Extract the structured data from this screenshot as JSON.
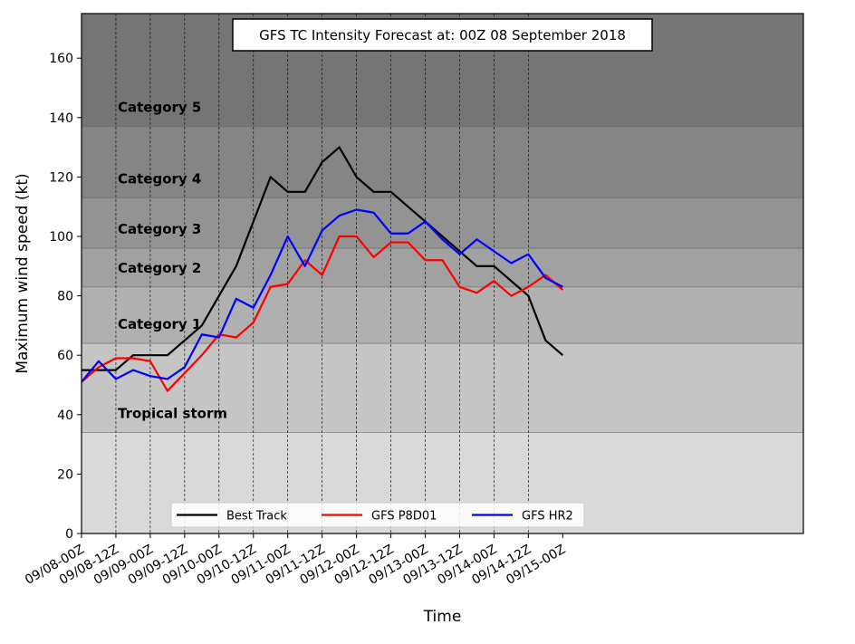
{
  "chart_data": {
    "type": "line",
    "title": "GFS TC Intensity Forecast at: 00Z 08 September 2018",
    "xlabel": "Time",
    "ylabel": "Maximum wind speed (kt)",
    "ylim": [
      0,
      175
    ],
    "yticks": [
      0,
      20,
      40,
      60,
      80,
      100,
      120,
      140,
      160
    ],
    "xlim": [
      0,
      42
    ],
    "x_step_hours": 6,
    "x_tick_every_points": 2,
    "x_tick_labels": [
      "09/08-00Z",
      "09/08-12Z",
      "09/09-00Z",
      "09/09-12Z",
      "09/10-00Z",
      "09/10-12Z",
      "09/11-00Z",
      "09/11-12Z",
      "09/12-00Z",
      "09/12-12Z",
      "09/13-00Z",
      "09/13-12Z",
      "09/14-00Z",
      "09/14-12Z",
      "09/15-00Z"
    ],
    "grid": "vertical dashed at x ticks",
    "legend_position": "bottom-left",
    "category_bands": [
      {
        "label": "",
        "low": 0,
        "high": 34,
        "color": "#d9d9d9"
      },
      {
        "label": "Tropical storm",
        "low": 34,
        "high": 64,
        "color": "#c5c5c5"
      },
      {
        "label": "Category 1",
        "low": 64,
        "high": 83,
        "color": "#b0b0b0"
      },
      {
        "label": "Category 2",
        "low": 83,
        "high": 96,
        "color": "#a1a1a1"
      },
      {
        "label": "Category 3",
        "low": 96,
        "high": 113,
        "color": "#939393"
      },
      {
        "label": "Category 4",
        "low": 113,
        "high": 137,
        "color": "#858585"
      },
      {
        "label": "Category 5",
        "low": 137,
        "high": 175,
        "color": "#757575"
      }
    ],
    "series": [
      {
        "name": "Best Track",
        "color": "#000000",
        "values": [
          55,
          55,
          55,
          60,
          60,
          60,
          65,
          70,
          80,
          90,
          105,
          120,
          115,
          115,
          125,
          130,
          120,
          115,
          115,
          110,
          105,
          100,
          95,
          90,
          90,
          85,
          80,
          65,
          60
        ]
      },
      {
        "name": "GFS P8D01",
        "color": "#ff0000",
        "values": [
          51,
          56,
          59,
          59,
          58,
          48,
          54,
          60,
          67,
          66,
          71,
          83,
          84,
          92,
          87,
          100,
          100,
          93,
          98,
          98,
          92,
          92,
          83,
          81,
          85,
          80,
          83,
          87,
          82
        ]
      },
      {
        "name": "GFS HR2",
        "color": "#0000ff",
        "values": [
          51,
          58,
          52,
          55,
          53,
          52,
          56,
          67,
          66,
          79,
          76,
          87,
          100,
          90,
          102,
          107,
          109,
          108,
          101,
          101,
          105,
          99,
          94,
          99,
          95,
          91,
          94,
          86,
          83
        ]
      }
    ]
  }
}
